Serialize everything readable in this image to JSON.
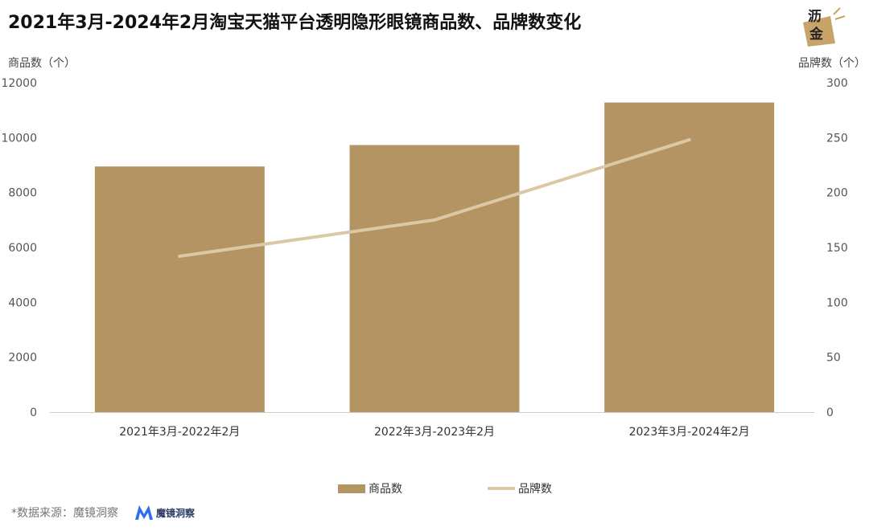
{
  "title": "2021年3月-2024年2月淘宝天猫平台透明隐形眼镜商品数、品牌数变化",
  "logo": {
    "text_top": "沥",
    "text_bottom": "金",
    "icon": "lijin-logo"
  },
  "source": {
    "label": "*数据来源：魔镜洞察",
    "brand": "魔镜洞察",
    "brand_icon": "mojing-m-logo"
  },
  "colors": {
    "bar": "#b49462",
    "line": "#dac8a6",
    "axis": "#cccccc"
  },
  "chart_data": {
    "type": "bar",
    "categories": [
      "2021年3月-2022年2月",
      "2022年3月-2023年2月",
      "2023年3月-2024年2月"
    ],
    "series": [
      {
        "name": "商品数",
        "type": "bar",
        "axis": "left",
        "values": [
          8950,
          9730,
          11280
        ]
      },
      {
        "name": "品牌数",
        "type": "line",
        "axis": "right",
        "values": [
          142,
          175,
          248
        ]
      }
    ],
    "ylabel": "商品数（个）",
    "ylabel_right": "品牌数（个）",
    "ylim": [
      0,
      12000
    ],
    "ylim_right": [
      0,
      300
    ],
    "yticks": [
      0,
      2000,
      4000,
      6000,
      8000,
      10000,
      12000
    ],
    "yticks_right": [
      0,
      50,
      100,
      150,
      200,
      250,
      300
    ],
    "grid": false,
    "legend_position": "bottom"
  }
}
